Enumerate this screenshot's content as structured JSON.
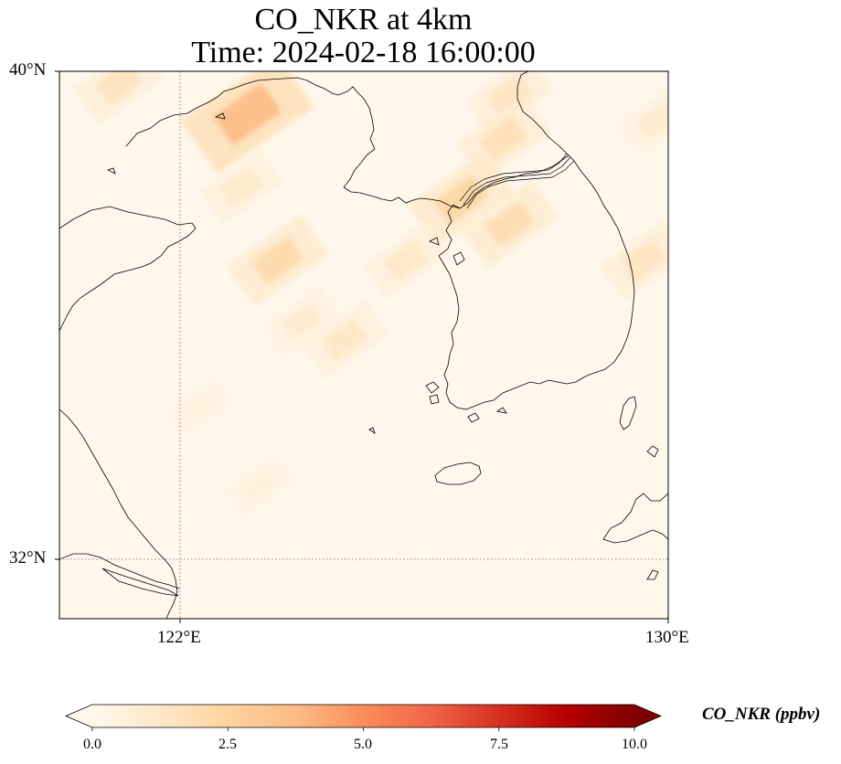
{
  "title": {
    "line1": "CO_NKR at 4km",
    "line2": "Time: 2024-02-18 16:00:00"
  },
  "axes": {
    "lat_ticks": [
      {
        "label": "40°N",
        "value": 40
      },
      {
        "label": "32°N",
        "value": 32
      }
    ],
    "lon_ticks": [
      {
        "label": "122°E",
        "value": 122
      },
      {
        "label": "130°E",
        "value": 130
      }
    ],
    "gridlines": "dotted"
  },
  "colorbar": {
    "label": "CO_NKR (ppbv)",
    "ticks": [
      "0.0",
      "2.5",
      "5.0",
      "7.5",
      "10.0"
    ],
    "range": [
      0,
      10
    ],
    "colormap": "OrRd",
    "colors": [
      "#fff7ec",
      "#fee8c8",
      "#fdd49e",
      "#fdbb84",
      "#fc8d59",
      "#ef6548",
      "#d7301f",
      "#b30000",
      "#7f0000"
    ],
    "extend": "both"
  },
  "chart_data": {
    "type": "heatmap",
    "title": "CO_NKR at 4km\nTime: 2024-02-18 16:00:00",
    "variable": "CO_NKR",
    "units": "ppbv",
    "vmin": 0,
    "vmax": 10,
    "lon_range": [
      120,
      130
    ],
    "lat_range": [
      31,
      40
    ],
    "hotspots": [
      {
        "lon": 123.1,
        "lat": 39.3,
        "value": 3.8
      },
      {
        "lon": 121.0,
        "lat": 39.8,
        "value": 1.6
      },
      {
        "lon": 127.4,
        "lat": 39.6,
        "value": 1.5
      },
      {
        "lon": 127.3,
        "lat": 38.9,
        "value": 1.8
      },
      {
        "lon": 126.6,
        "lat": 37.9,
        "value": 2.4
      },
      {
        "lon": 127.4,
        "lat": 37.5,
        "value": 2.0
      },
      {
        "lon": 129.6,
        "lat": 36.9,
        "value": 1.5
      },
      {
        "lon": 123.6,
        "lat": 36.9,
        "value": 2.2
      },
      {
        "lon": 125.7,
        "lat": 36.9,
        "value": 1.3
      },
      {
        "lon": 123.0,
        "lat": 38.1,
        "value": 1.2
      },
      {
        "lon": 124.7,
        "lat": 35.6,
        "value": 1.4
      },
      {
        "lon": 124.0,
        "lat": 35.9,
        "value": 1.0
      },
      {
        "lon": 129.8,
        "lat": 39.2,
        "value": 1.0
      },
      {
        "lon": 123.3,
        "lat": 33.2,
        "value": 0.7
      },
      {
        "lon": 122.3,
        "lat": 34.5,
        "value": 0.6
      }
    ]
  }
}
